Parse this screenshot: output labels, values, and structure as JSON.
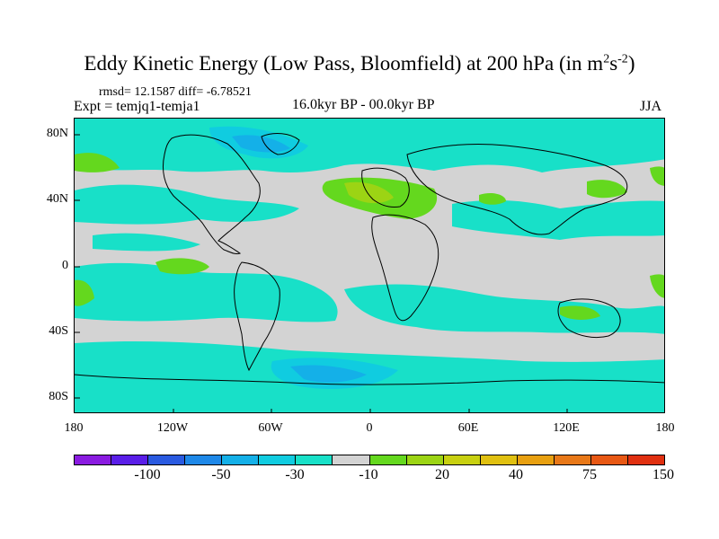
{
  "title": {
    "main": "Eddy Kinetic Energy (Low Pass, Bloomfield) at 200 hPa (in m",
    "sup1": "2",
    "mid": "s",
    "sup2": "-2",
    "end": ")"
  },
  "stats": "rmsd= 12.1587 diff= -6.78521",
  "experiment": "Expt = temjq1-temja1",
  "period": "16.0kyr BP - 00.0kyr BP",
  "season": "JJA",
  "map": {
    "background_color": "#d3d3d3",
    "lat_labels": [
      "80N",
      "40N",
      "0",
      "40S",
      "80S"
    ],
    "lon_labels": [
      "180",
      "120W",
      "60W",
      "0",
      "60E",
      "120E",
      "180"
    ]
  },
  "colorbar": {
    "colors": [
      "#8a1be0",
      "#5a1ee8",
      "#2a5ae0",
      "#1e88e8",
      "#14b0e8",
      "#10cce0",
      "#18e0c8",
      "#d3d3d3",
      "#64d81e",
      "#9cd414",
      "#c8d010",
      "#e0c010",
      "#e8a010",
      "#e87818",
      "#e85814",
      "#e03010"
    ],
    "labels": [
      "-100",
      "-50",
      "-30",
      "-10",
      "20",
      "40",
      "75",
      "150"
    ]
  }
}
